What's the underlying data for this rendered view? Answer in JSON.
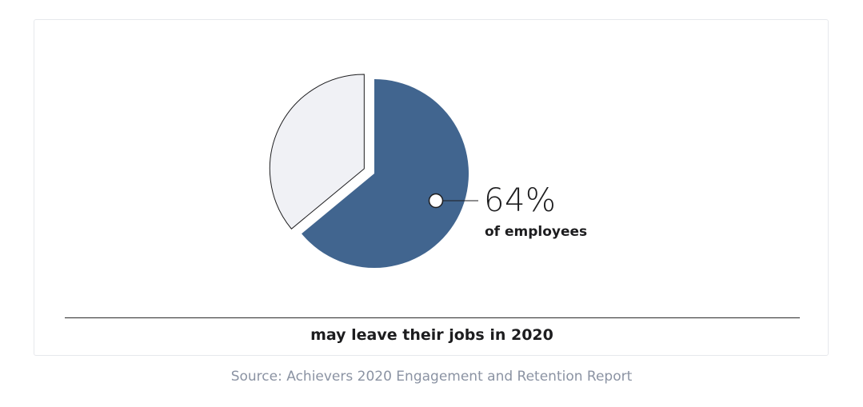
{
  "chart_data": {
    "type": "pie",
    "slices": [
      {
        "label": "of employees",
        "value": 64,
        "display": "64%",
        "color": "#41658f"
      },
      {
        "label": "",
        "value": 36,
        "color": "#f0f1f5"
      }
    ],
    "annotation": {
      "value_text": "64%",
      "caption": "of employees"
    },
    "subtitle": "may leave their jobs in 2020"
  },
  "source": "Source: Achievers 2020 Engagement and Retention Report"
}
